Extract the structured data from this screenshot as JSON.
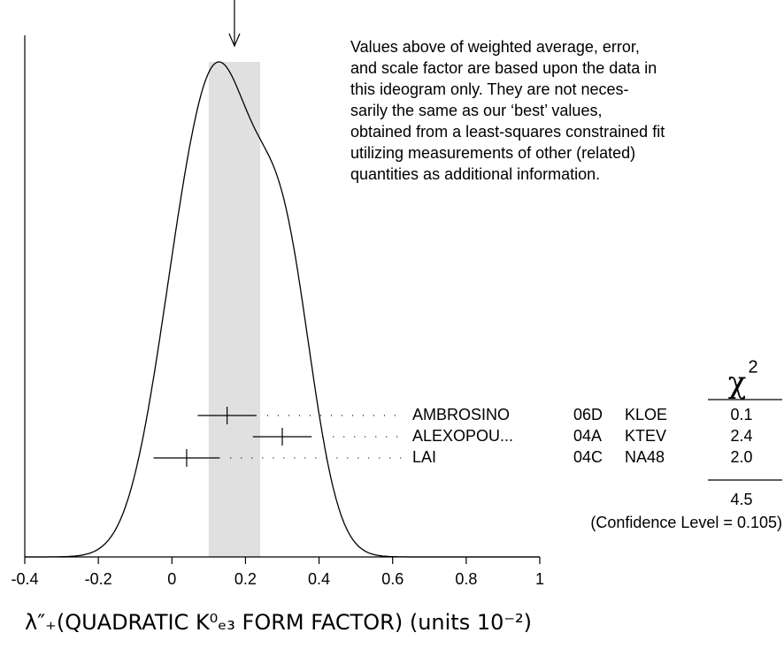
{
  "chart_data": {
    "type": "ideogram",
    "x_label": "λ″₊(QUADRATIC K⁰ₑ₃ FORM FACTOR) (units 10⁻²)",
    "xlim": [
      -0.4,
      1
    ],
    "xticks": [
      -0.4,
      -0.2,
      0,
      0.2,
      0.4,
      0.6,
      0.8,
      1
    ],
    "average": {
      "value": 0.17,
      "error": 0.07
    },
    "note_lines": [
      "Values above of weighted average, error,",
      "and scale factor are based upon the data in",
      "this ideogram only.  They are not neces-",
      "sarily the same as our ‘best’ values,",
      "obtained from a least-squares constrained fit",
      "utilizing measurements of other (related)",
      "quantities as additional information."
    ],
    "chi2_symbol": "χ",
    "chi2_power": "2",
    "names": [
      "AMBROSINO",
      "ALEXOPOU...",
      "LAI"
    ],
    "years": [
      "06D",
      "04A",
      "04C"
    ],
    "experiments": [
      "KLOE",
      "KTEV",
      "NA48"
    ],
    "values": [
      0.15,
      0.3,
      0.04
    ],
    "errors": [
      0.08,
      0.08,
      0.09
    ],
    "chi2": {
      "values": [
        0.1,
        2.4,
        2.0
      ],
      "value_labels": [
        "0.1",
        "2.4",
        "2.0"
      ]
    },
    "chi2_total": 4.5,
    "confidence_text": "(Confidence Level = 0.105)"
  }
}
